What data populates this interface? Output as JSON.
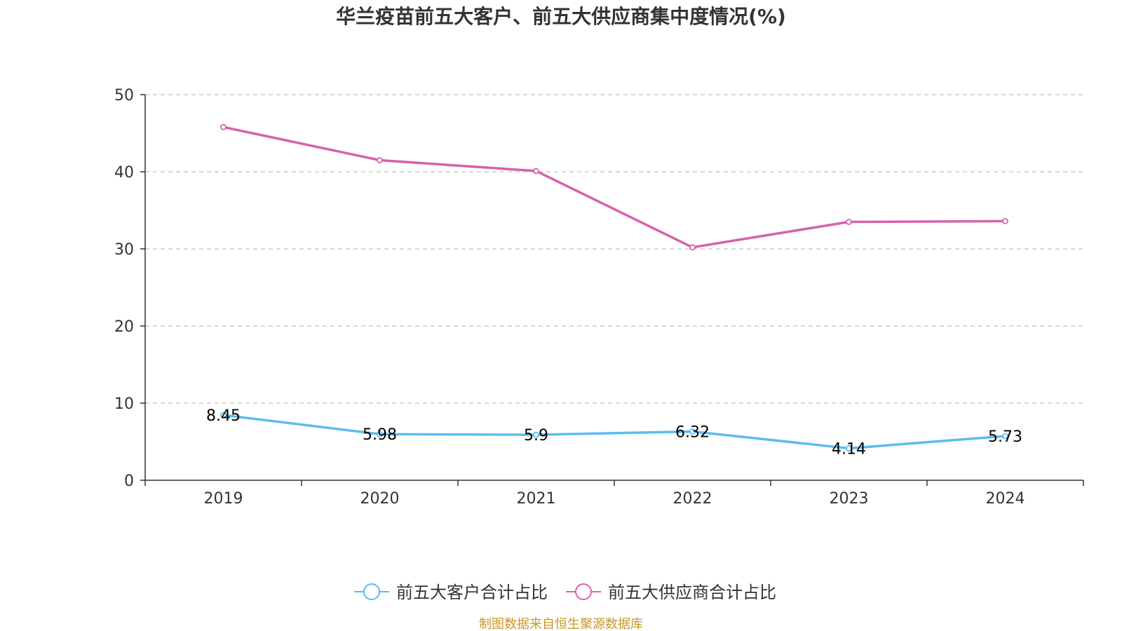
{
  "chart_data": {
    "type": "line",
    "title": "华兰疫苗前五大客户、前五大供应商集中度情况(%)",
    "categories": [
      "2019",
      "2020",
      "2021",
      "2022",
      "2023",
      "2024"
    ],
    "ylim": [
      0,
      50
    ],
    "yticks": [
      0,
      10,
      20,
      30,
      40,
      50
    ],
    "grid": true,
    "legend_position": "bottom-center",
    "series": [
      {
        "name": "前五大客户合计占比",
        "color": "#5bbcee",
        "values": [
          8.45,
          5.98,
          5.9,
          6.32,
          4.14,
          5.73
        ],
        "labels": [
          "8.45",
          "5.98",
          "5.9",
          "6.32",
          "4.14",
          "5.73"
        ],
        "show_labels": true
      },
      {
        "name": "前五大供应商合计占比",
        "color": "#d462ab",
        "values": [
          45.8,
          41.5,
          40.1,
          30.2,
          33.5,
          33.6
        ],
        "show_labels": false
      }
    ]
  },
  "source": {
    "text": "制图数据来自恒生聚源数据库",
    "color": "#c8962a"
  }
}
